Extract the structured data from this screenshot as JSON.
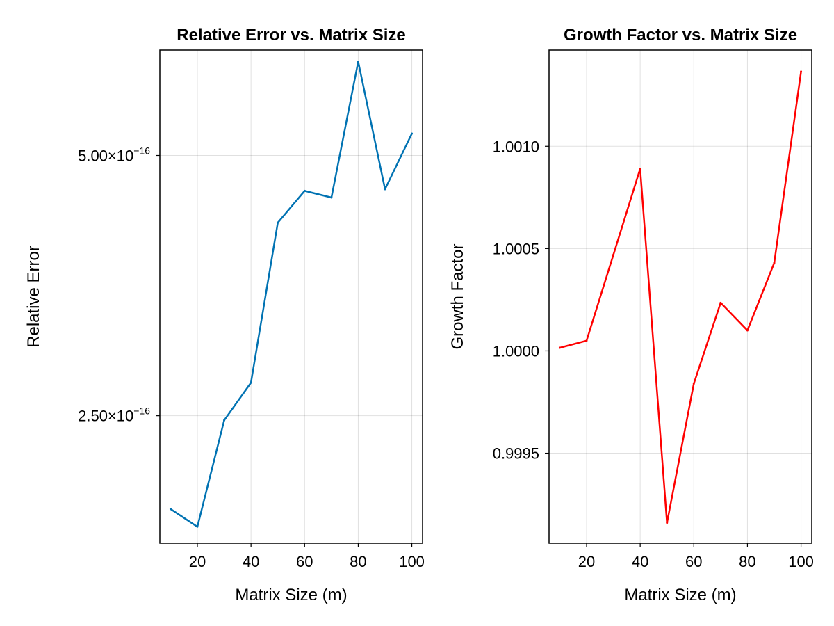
{
  "chart_data": [
    {
      "type": "line",
      "title": "Relative Error vs. Matrix Size",
      "xlabel": "Matrix Size (m)",
      "ylabel": "Relative Error",
      "yscale": "log",
      "x": [
        10,
        20,
        30,
        40,
        50,
        60,
        70,
        80,
        90,
        100
      ],
      "series": [
        {
          "values": [
            1.95e-16,
            1.86e-16,
            2.47e-16,
            2.73e-16,
            4.18e-16,
            4.55e-16,
            4.47e-16,
            6.42e-16,
            4.57e-16,
            5.3e-16
          ],
          "color": "#0072b2"
        }
      ],
      "xlim": [
        6,
        104
      ],
      "ylim": [
        1.78e-16,
        6.62e-16
      ],
      "xticks": [
        20,
        40,
        60,
        80,
        100
      ],
      "xtick_labels": [
        "20",
        "40",
        "60",
        "80",
        "100"
      ],
      "yticks": [
        2.5e-16,
        5e-16
      ],
      "ytick_labels": [
        {
          "mantissa": "2.50×10",
          "exponent": "−16"
        },
        {
          "mantissa": "5.00×10",
          "exponent": "−16"
        }
      ],
      "grid": true
    },
    {
      "type": "line",
      "title": "Growth Factor vs. Matrix Size",
      "xlabel": "Matrix Size (m)",
      "ylabel": "Growth Factor",
      "x": [
        10,
        20,
        30,
        40,
        50,
        60,
        70,
        80,
        90,
        100
      ],
      "series": [
        {
          "values": [
            1.000015,
            1.00005,
            1.00047,
            1.00089,
            0.99916,
            0.99984,
            1.000235,
            1.0001,
            1.00043,
            1.001365
          ],
          "color": "#ff0000"
        }
      ],
      "xlim": [
        6,
        104
      ],
      "ylim": [
        0.99906,
        1.00147
      ],
      "xticks": [
        20,
        40,
        60,
        80,
        100
      ],
      "xtick_labels": [
        "20",
        "40",
        "60",
        "80",
        "100"
      ],
      "yticks": [
        0.9995,
        1.0,
        1.0005,
        1.001
      ],
      "ytick_labels": [
        "0.9995",
        "1.0000",
        "1.0005",
        "1.0010"
      ],
      "grid": true
    }
  ]
}
